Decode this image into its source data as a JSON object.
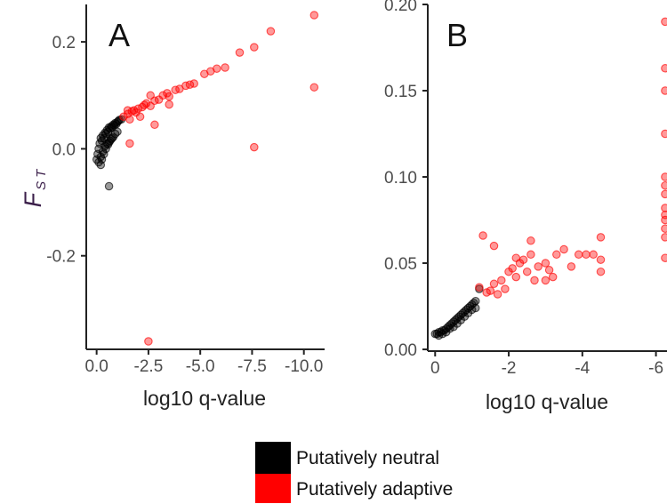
{
  "colors": {
    "neutral": "#000000",
    "adaptive": "#ff0000",
    "axis": "#222222",
    "tick_label": "#4d4d4d",
    "y_title": "#3b1f4a"
  },
  "y_title": {
    "main": "F",
    "sub": "ST"
  },
  "legend": {
    "neutral_label": "Putatively neutral",
    "adaptive_label": "Putatively adaptive",
    "neutral_color": "#000000",
    "adaptive_color": "#ff0000"
  },
  "chart_data": [
    {
      "type": "scatter",
      "panel": "A",
      "xlabel": "log10 q-value",
      "ylabel": "FST",
      "x_reversed": true,
      "xlim": [
        0.5,
        -11
      ],
      "ylim": [
        -0.375,
        0.27
      ],
      "x_ticks": [
        0,
        -2.5,
        -5,
        -7.5,
        -10
      ],
      "x_tick_labels": [
        "0.0",
        "-2.5",
        "-5.0",
        "-7.5",
        "-10.0"
      ],
      "y_ticks": [
        -0.2,
        0,
        0.2
      ],
      "y_tick_labels": [
        "-0.2",
        "0.0",
        "0.2"
      ],
      "grid": false,
      "series": [
        {
          "name": "Putatively neutral",
          "color": "#000000",
          "points": [
            [
              0.0,
              -0.02
            ],
            [
              -0.05,
              -0.01
            ],
            [
              -0.1,
              0.0
            ],
            [
              -0.15,
              0.01
            ],
            [
              -0.2,
              0.02
            ],
            [
              -0.25,
              0.015
            ],
            [
              -0.3,
              0.025
            ],
            [
              -0.35,
              0.02
            ],
            [
              -0.4,
              0.03
            ],
            [
              -0.45,
              0.028
            ],
            [
              -0.5,
              0.035
            ],
            [
              -0.55,
              0.032
            ],
            [
              -0.6,
              0.04
            ],
            [
              -0.65,
              0.038
            ],
            [
              -0.7,
              0.042
            ],
            [
              -0.75,
              0.04
            ],
            [
              -0.8,
              0.045
            ],
            [
              -0.85,
              0.044
            ],
            [
              -0.9,
              0.048
            ],
            [
              -0.95,
              0.046
            ],
            [
              -1.0,
              0.05
            ],
            [
              -1.05,
              0.052
            ],
            [
              -1.1,
              0.054
            ],
            [
              -1.2,
              0.055
            ],
            [
              -0.1,
              -0.025
            ],
            [
              -0.2,
              -0.015
            ],
            [
              -0.3,
              -0.005
            ],
            [
              -0.4,
              0.005
            ],
            [
              -0.5,
              0.01
            ],
            [
              -0.6,
              0.012
            ],
            [
              -0.7,
              0.018
            ],
            [
              -0.8,
              0.022
            ],
            [
              -0.9,
              0.028
            ],
            [
              -1.0,
              0.032
            ],
            [
              -0.25,
              -0.02
            ],
            [
              -0.35,
              -0.01
            ],
            [
              -0.45,
              0.0
            ],
            [
              -0.55,
              0.008
            ],
            [
              -0.65,
              0.015
            ],
            [
              -0.75,
              0.02
            ],
            [
              -0.2,
              -0.03
            ],
            [
              -0.6,
              -0.07
            ]
          ]
        },
        {
          "name": "Putatively adaptive",
          "color": "#ff0000",
          "points": [
            [
              -1.3,
              0.06
            ],
            [
              -1.5,
              0.065
            ],
            [
              -1.6,
              0.055
            ],
            [
              -1.7,
              0.07
            ],
            [
              -1.8,
              0.072
            ],
            [
              -1.9,
              0.068
            ],
            [
              -2.0,
              0.075
            ],
            [
              -2.2,
              0.078
            ],
            [
              -2.3,
              0.082
            ],
            [
              -2.4,
              0.085
            ],
            [
              -2.6,
              0.08
            ],
            [
              -2.8,
              0.09
            ],
            [
              -3.0,
              0.092
            ],
            [
              -3.2,
              0.1
            ],
            [
              -3.4,
              0.104
            ],
            [
              -3.5,
              0.098
            ],
            [
              -3.8,
              0.11
            ],
            [
              -4.0,
              0.112
            ],
            [
              -4.3,
              0.118
            ],
            [
              -4.5,
              0.12
            ],
            [
              -4.7,
              0.122
            ],
            [
              -5.2,
              0.14
            ],
            [
              -5.5,
              0.145
            ],
            [
              -5.8,
              0.15
            ],
            [
              -6.2,
              0.152
            ],
            [
              -6.9,
              0.18
            ],
            [
              -7.6,
              0.19
            ],
            [
              -8.4,
              0.22
            ],
            [
              -10.5,
              0.25
            ],
            [
              -10.5,
              0.115
            ],
            [
              -7.6,
              0.003
            ],
            [
              -1.6,
              0.01
            ],
            [
              -2.8,
              0.045
            ],
            [
              -3.5,
              0.083
            ],
            [
              -2.5,
              -0.36
            ],
            [
              -2.1,
              0.06
            ],
            [
              -1.5,
              0.072
            ],
            [
              -2.6,
              0.1
            ]
          ]
        }
      ]
    },
    {
      "type": "scatter",
      "panel": "B",
      "xlabel": "log10 q-value",
      "ylabel": "FST",
      "x_reversed": true,
      "xlim": [
        0.2,
        -6.3
      ],
      "ylim": [
        -0.001,
        0.2
      ],
      "x_ticks": [
        0,
        -2,
        -4,
        -6
      ],
      "x_tick_labels": [
        "0",
        "-2",
        "-4",
        "-6"
      ],
      "y_ticks": [
        0,
        0.05,
        0.1,
        0.15,
        0.2
      ],
      "y_tick_labels": [
        "0.00",
        "0.05",
        "0.10",
        "0.15",
        "0.20"
      ],
      "grid": false,
      "series": [
        {
          "name": "Putatively neutral",
          "color": "#000000",
          "points": [
            [
              0.0,
              0.009
            ],
            [
              -0.05,
              0.009
            ],
            [
              -0.1,
              0.01
            ],
            [
              -0.15,
              0.01
            ],
            [
              -0.2,
              0.011
            ],
            [
              -0.25,
              0.011
            ],
            [
              -0.3,
              0.012
            ],
            [
              -0.35,
              0.013
            ],
            [
              -0.4,
              0.014
            ],
            [
              -0.45,
              0.015
            ],
            [
              -0.5,
              0.016
            ],
            [
              -0.55,
              0.017
            ],
            [
              -0.6,
              0.018
            ],
            [
              -0.65,
              0.019
            ],
            [
              -0.7,
              0.02
            ],
            [
              -0.75,
              0.021
            ],
            [
              -0.8,
              0.022
            ],
            [
              -0.85,
              0.023
            ],
            [
              -0.9,
              0.024
            ],
            [
              -0.95,
              0.025
            ],
            [
              -1.0,
              0.026
            ],
            [
              -1.05,
              0.027
            ],
            [
              -1.1,
              0.028
            ],
            [
              -1.2,
              0.035
            ],
            [
              -0.1,
              0.008
            ],
            [
              -0.3,
              0.01
            ],
            [
              -0.5,
              0.013
            ],
            [
              -0.7,
              0.017
            ],
            [
              -0.9,
              0.021
            ],
            [
              -1.1,
              0.024
            ],
            [
              -0.2,
              0.009
            ],
            [
              -0.4,
              0.012
            ],
            [
              -0.6,
              0.015
            ],
            [
              -0.8,
              0.019
            ],
            [
              -1.0,
              0.023
            ]
          ]
        },
        {
          "name": "Putatively adaptive",
          "color": "#ff0000",
          "points": [
            [
              -1.2,
              0.036
            ],
            [
              -1.3,
              0.066
            ],
            [
              -1.4,
              0.033
            ],
            [
              -1.5,
              0.034
            ],
            [
              -1.6,
              0.038
            ],
            [
              -1.7,
              0.032
            ],
            [
              -1.8,
              0.04
            ],
            [
              -1.9,
              0.035
            ],
            [
              -2.0,
              0.045
            ],
            [
              -2.1,
              0.047
            ],
            [
              -2.2,
              0.042
            ],
            [
              -2.3,
              0.05
            ],
            [
              -2.4,
              0.052
            ],
            [
              -2.5,
              0.045
            ],
            [
              -2.6,
              0.055
            ],
            [
              -2.6,
              0.063
            ],
            [
              -2.7,
              0.04
            ],
            [
              -2.8,
              0.048
            ],
            [
              -3.0,
              0.05
            ],
            [
              -3.2,
              0.042
            ],
            [
              -3.3,
              0.055
            ],
            [
              -3.5,
              0.058
            ],
            [
              -3.7,
              0.048
            ],
            [
              -3.9,
              0.055
            ],
            [
              -4.1,
              0.055
            ],
            [
              -4.3,
              0.055
            ],
            [
              -4.5,
              0.065
            ],
            [
              -4.5,
              0.052
            ],
            [
              -4.5,
              0.045
            ],
            [
              -3.0,
              0.04
            ],
            [
              -3.1,
              0.046
            ],
            [
              -1.6,
              0.06
            ],
            [
              -2.2,
              0.053
            ],
            [
              -6.25,
              0.19
            ],
            [
              -6.25,
              0.163
            ],
            [
              -6.25,
              0.15
            ],
            [
              -6.25,
              0.125
            ],
            [
              -6.25,
              0.1
            ],
            [
              -6.25,
              0.095
            ],
            [
              -6.25,
              0.09
            ],
            [
              -6.25,
              0.082
            ],
            [
              -6.25,
              0.078
            ],
            [
              -6.25,
              0.075
            ],
            [
              -6.25,
              0.07
            ],
            [
              -6.25,
              0.065
            ],
            [
              -6.25,
              0.053
            ]
          ]
        }
      ]
    }
  ]
}
